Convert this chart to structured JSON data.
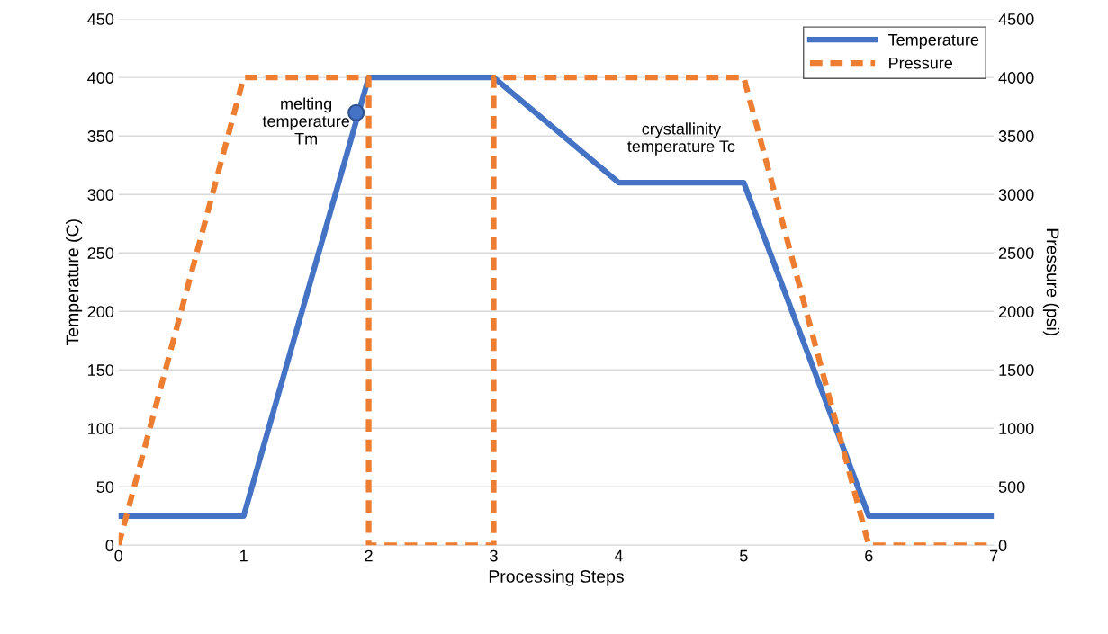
{
  "chart_data": {
    "type": "line",
    "xlabel": "Processing Steps",
    "ylabel": "Temperature (C)",
    "y2label": "Pressure (psi)",
    "xlim": [
      0,
      7
    ],
    "xticks": [
      0,
      1,
      2,
      3,
      4,
      5,
      6,
      7
    ],
    "ylim": [
      0,
      450
    ],
    "yticks": [
      0,
      50,
      100,
      150,
      200,
      250,
      300,
      350,
      400,
      450
    ],
    "y2lim": [
      0,
      4500
    ],
    "y2ticks": [
      0,
      500,
      1000,
      1500,
      2000,
      2500,
      3000,
      3500,
      4000,
      4500
    ],
    "grid": "y",
    "legend": "top right",
    "series": [
      {
        "name": "Temperature",
        "color": "#4472c4",
        "line_style": "solid",
        "x": [
          0,
          1,
          2,
          3,
          4,
          5,
          6,
          7
        ],
        "values": [
          25,
          25,
          400,
          400,
          310,
          310,
          25,
          25
        ]
      },
      {
        "name": "Pressure",
        "color": "#ed7d31",
        "line_style": "dashed",
        "axis": "y2",
        "x": [
          0,
          1,
          2,
          2,
          3,
          3,
          5,
          6,
          7
        ],
        "values": [
          0,
          4000,
          4000,
          0,
          0,
          4000,
          4000,
          0,
          0
        ]
      },
      {
        "type": "scatter",
        "color": "#4472c4",
        "marker": "circle",
        "x": [
          1.9
        ],
        "values": [
          370
        ]
      }
    ],
    "annotations": [
      {
        "text": "melting\ntemperature\nTm",
        "x": 1.9,
        "y": 370
      },
      {
        "text": "crystallinity\ntemperature Tc",
        "x": 4.5,
        "y": 310
      }
    ]
  }
}
